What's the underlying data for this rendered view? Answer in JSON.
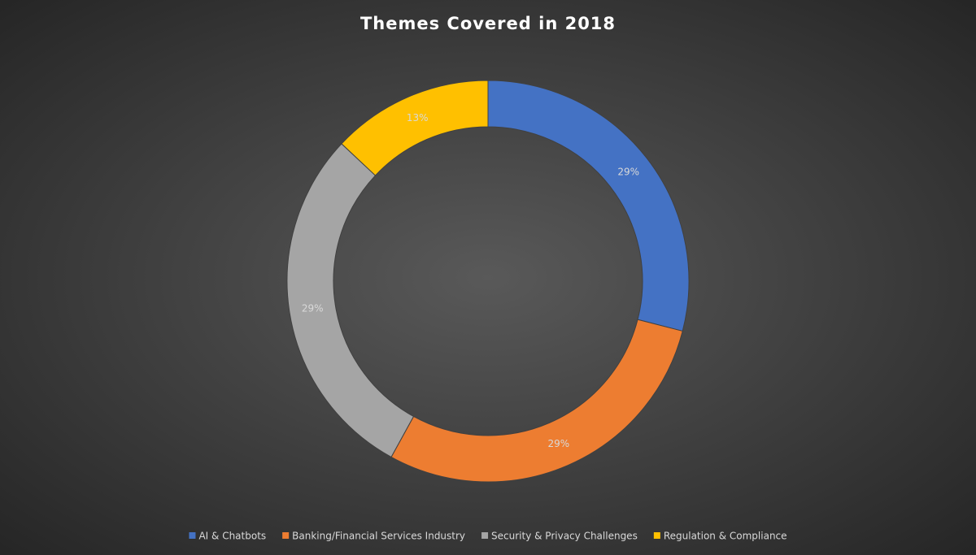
{
  "chart_data": {
    "type": "donut",
    "title": "Themes Covered in 2018",
    "categories": [
      "AI & Chatbots",
      "Banking/Financial Services Industry",
      "Security & Privacy Challenges",
      "Regulation & Compliance"
    ],
    "values": [
      29,
      29,
      29,
      13
    ],
    "value_labels": [
      "29%",
      "29%",
      "29%",
      "13%"
    ],
    "colors": [
      "#4472c4",
      "#ed7d31",
      "#a5a5a5",
      "#ffc000"
    ],
    "legend": "bottom"
  }
}
